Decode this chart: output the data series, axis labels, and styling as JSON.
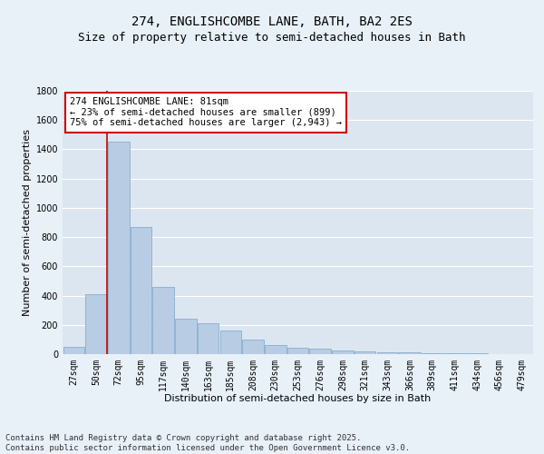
{
  "title_line1": "274, ENGLISHCOMBE LANE, BATH, BA2 2ES",
  "title_line2": "Size of property relative to semi-detached houses in Bath",
  "xlabel": "Distribution of semi-detached houses by size in Bath",
  "ylabel": "Number of semi-detached properties",
  "categories": [
    "27sqm",
    "50sqm",
    "72sqm",
    "95sqm",
    "117sqm",
    "140sqm",
    "163sqm",
    "185sqm",
    "208sqm",
    "230sqm",
    "253sqm",
    "276sqm",
    "298sqm",
    "321sqm",
    "343sqm",
    "366sqm",
    "389sqm",
    "411sqm",
    "434sqm",
    "456sqm",
    "479sqm"
  ],
  "values": [
    50,
    410,
    1450,
    870,
    460,
    240,
    210,
    160,
    100,
    60,
    45,
    35,
    25,
    20,
    15,
    10,
    8,
    6,
    4,
    3,
    2
  ],
  "bar_color": "#b8cce4",
  "bar_edge_color": "#7ba7c7",
  "vline_color": "#cc0000",
  "vline_x": 1.5,
  "ylim": [
    0,
    1800
  ],
  "yticks": [
    0,
    200,
    400,
    600,
    800,
    1000,
    1200,
    1400,
    1600,
    1800
  ],
  "bg_color": "#dce6f0",
  "grid_color": "#ffffff",
  "fig_bg_color": "#e8f0f8",
  "annotation_text": "274 ENGLISHCOMBE LANE: 81sqm\n← 23% of semi-detached houses are smaller (899)\n75% of semi-detached houses are larger (2,943) →",
  "annotation_box_color": "#ffffff",
  "annotation_box_edge": "#cc0000",
  "footer_text": "Contains HM Land Registry data © Crown copyright and database right 2025.\nContains public sector information licensed under the Open Government Licence v3.0.",
  "title_fontsize": 10,
  "subtitle_fontsize": 9,
  "axis_label_fontsize": 8,
  "tick_fontsize": 7,
  "annotation_fontsize": 7.5,
  "footer_fontsize": 6.5
}
